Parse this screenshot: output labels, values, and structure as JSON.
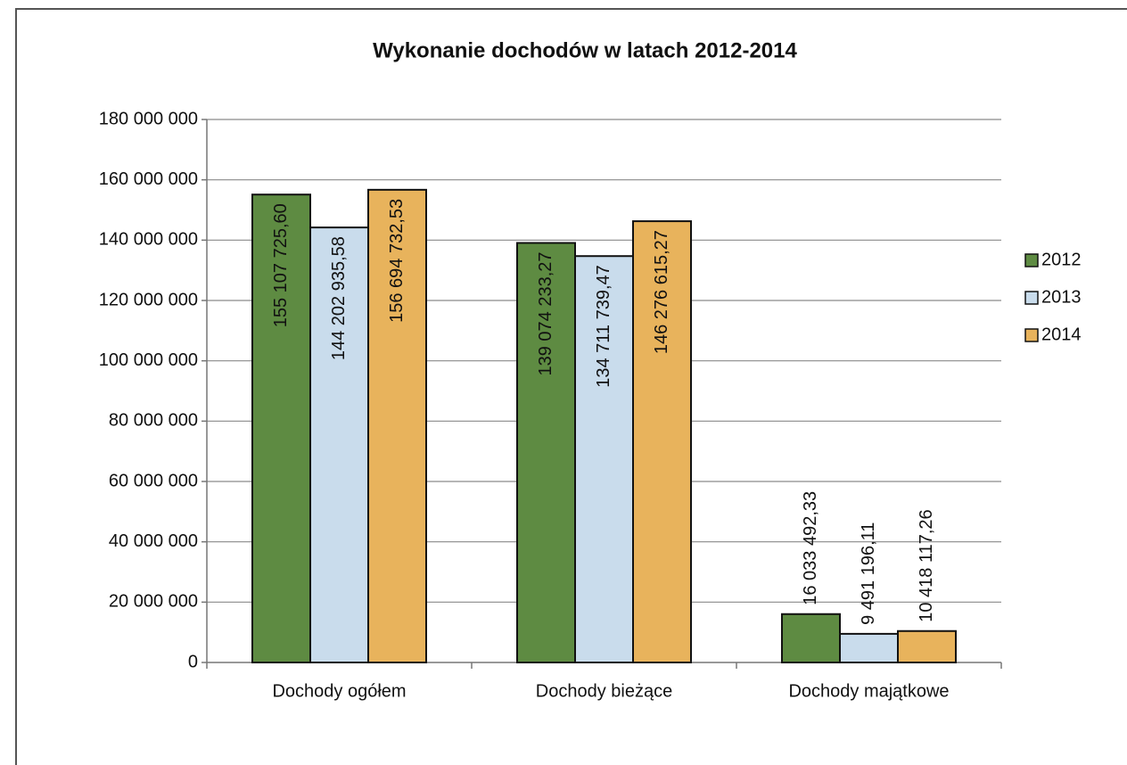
{
  "chart_data": {
    "type": "bar",
    "title": "Wykonanie dochodów w latach 2012-2014",
    "categories": [
      "Dochody ogółem",
      "Dochody bieżące",
      "Dochody majątkowe"
    ],
    "series": [
      {
        "name": "2012",
        "color": "#5e8b42",
        "values": [
          155107725.6,
          139074233.27,
          16033492.33
        ],
        "value_labels": [
          "155 107 725,60",
          "139 074 233,27",
          "16 033 492,33"
        ]
      },
      {
        "name": "2013",
        "color": "#c9dcec",
        "values": [
          144202935.58,
          134711739.47,
          9491196.11
        ],
        "value_labels": [
          "144 202 935,58",
          "134 711 739,47",
          "9 491 196,11"
        ]
      },
      {
        "name": "2014",
        "color": "#e8b35c",
        "values": [
          156694732.53,
          146276615.27,
          10418117.26
        ],
        "value_labels": [
          "156 694 732,53",
          "146 276 615,27",
          "10 418 117,26"
        ]
      }
    ],
    "ylim": [
      0,
      180000000
    ],
    "yticks": [
      0,
      {
        "value": 20000000,
        "label": "20 000 000"
      },
      {
        "value": 40000000,
        "label": "40 000 000"
      },
      {
        "value": 60000000,
        "label": "60 000 000"
      },
      {
        "value": 80000000,
        "label": "80 000 000"
      },
      {
        "value": 100000000,
        "label": "100 000 000"
      },
      {
        "value": 120000000,
        "label": "120 000 000"
      },
      {
        "value": 140000000,
        "label": "140 000 000"
      },
      {
        "value": 160000000,
        "label": "160 000 000"
      },
      {
        "value": 180000000,
        "label": "180 000 000"
      }
    ],
    "grid": true,
    "legend": "right"
  }
}
